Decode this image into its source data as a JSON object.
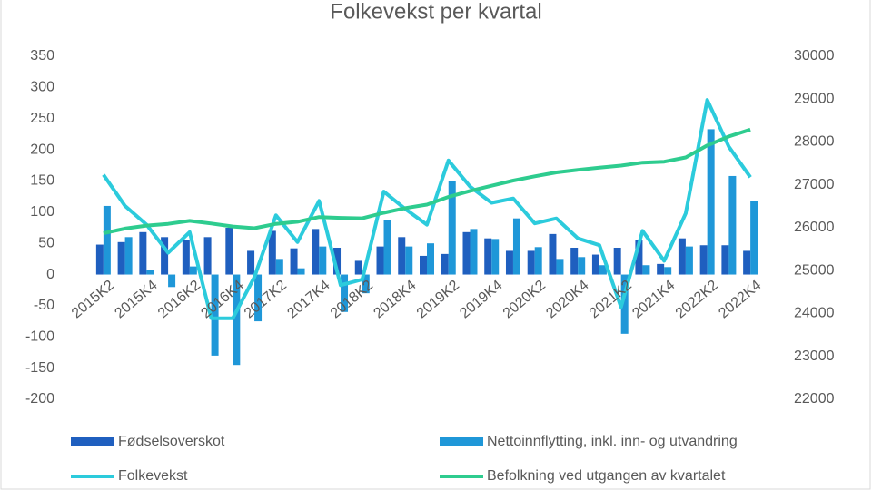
{
  "chart_data": {
    "type": "bar_line",
    "title": "Folkevekst per kvartal",
    "categories": [
      "2015K2",
      null,
      "2015K4",
      null,
      "2016K2",
      null,
      "2016K4",
      null,
      "2017K2",
      null,
      "2017K4",
      null,
      "2018K2",
      null,
      "2018K4",
      null,
      "2019K2",
      null,
      "2019K4",
      null,
      "2020K2",
      null,
      "2020K4",
      null,
      "2021K2",
      null,
      "2021K4",
      null,
      "2022K2",
      null,
      "2022K4"
    ],
    "series": [
      {
        "name": "Fødselsoverskot",
        "type": "bar",
        "color": "#1f5fbf",
        "values": [
          48,
          52,
          68,
          60,
          55,
          60,
          75,
          38,
          70,
          42,
          73,
          43,
          22,
          45,
          60,
          30,
          33,
          68,
          58,
          38,
          38,
          65,
          43,
          32,
          43,
          55,
          17,
          58,
          47,
          47,
          38
        ]
      },
      {
        "name": "Nettoinnflytting, inkl. inn- og utvandring",
        "type": "bar",
        "color": "#1f97d8",
        "values": [
          110,
          60,
          8,
          -20,
          13,
          -130,
          -145,
          -75,
          25,
          10,
          45,
          -60,
          -30,
          88,
          45,
          50,
          150,
          73,
          57,
          90,
          44,
          25,
          28,
          15,
          -95,
          15,
          12,
          45,
          233,
          158,
          118
        ]
      },
      {
        "name": "Folkevekst",
        "type": "line",
        "color": "#2ccbdc",
        "values": [
          160,
          110,
          80,
          35,
          68,
          -70,
          -70,
          -4,
          95,
          52,
          118,
          -17,
          -8,
          133,
          105,
          80,
          183,
          141,
          115,
          122,
          82,
          90,
          58,
          47,
          -52,
          70,
          22,
          98,
          280,
          205,
          156
        ]
      },
      {
        "name": "Befolkning ved utgangen av kvartalet",
        "type": "line",
        "axis": "y2",
        "color": "#2ecc8f",
        "values": [
          25870,
          25980,
          26050,
          26090,
          26160,
          26100,
          26030,
          25990,
          26090,
          26140,
          26250,
          26230,
          26220,
          26350,
          26460,
          26540,
          26720,
          26860,
          26980,
          27100,
          27200,
          27290,
          27350,
          27400,
          27450,
          27520,
          27540,
          27640,
          27920,
          28130,
          28290
        ]
      }
    ],
    "ylim": [
      -200,
      350
    ],
    "yticks": [
      -200,
      -150,
      -100,
      -50,
      0,
      50,
      100,
      150,
      200,
      250,
      300,
      350
    ],
    "y2lim": [
      22000,
      30000
    ],
    "y2ticks": [
      22000,
      23000,
      24000,
      25000,
      26000,
      27000,
      28000,
      29000,
      30000
    ]
  }
}
